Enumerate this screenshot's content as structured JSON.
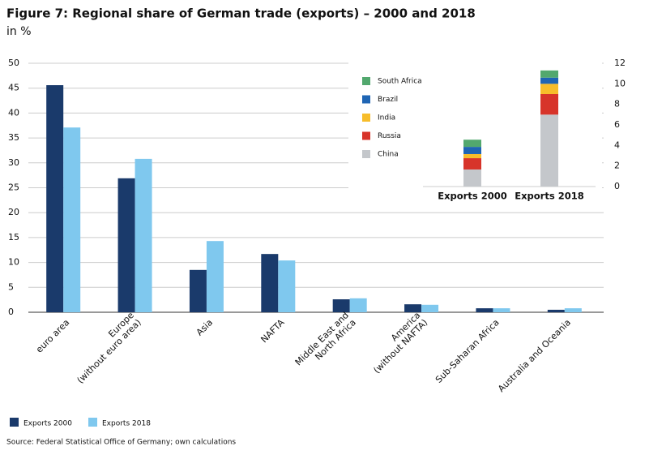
{
  "chart_data": [
    {
      "type": "bar",
      "title": "Figure 7: Regional share of German trade (exports) – 2000 and 2018",
      "subtitle": "in %",
      "note": "Source: Federal Statistical Office of Germany; own calculations",
      "categories": [
        "euro area",
        "Europe\n(without euro area)",
        "Asia",
        "NAFTA",
        "Middle East and\nNorth Africa",
        "America\n(without NAFTA)",
        "Sub-Saharan Africa",
        "Australia and Oceania"
      ],
      "series": [
        {
          "name": "Exports 2000",
          "color": "#1a3a6b",
          "values": [
            45.6,
            26.9,
            8.5,
            11.7,
            2.6,
            1.6,
            0.8,
            0.5
          ]
        },
        {
          "name": "Exports 2018",
          "color": "#7fc8ee",
          "values": [
            37.1,
            30.8,
            14.3,
            10.4,
            2.8,
            1.5,
            0.8,
            0.8
          ]
        }
      ],
      "ylim": [
        0,
        50
      ],
      "yticks": [
        0,
        5,
        10,
        15,
        20,
        25,
        30,
        35,
        40,
        45,
        50
      ],
      "grid": true,
      "legend": "bottom-left"
    },
    {
      "type": "stacked-bar",
      "categories": [
        "Exports 2000",
        "Exports 2018"
      ],
      "series": [
        {
          "name": "China",
          "color": "#c4c7cb",
          "values": [
            1.66,
            7.0
          ]
        },
        {
          "name": "Russia",
          "color": "#d7342a",
          "values": [
            1.1,
            2.0
          ]
        },
        {
          "name": "India",
          "color": "#f7bd2b",
          "values": [
            0.4,
            1.0
          ]
        },
        {
          "name": "Brazil",
          "color": "#1f65b4",
          "values": [
            0.7,
            0.6
          ]
        },
        {
          "name": "South Africa",
          "color": "#52a86e",
          "values": [
            0.7,
            0.7
          ]
        }
      ],
      "ylim": [
        0,
        12
      ],
      "yticks": [
        0,
        2,
        4,
        6,
        8,
        10,
        12
      ],
      "legend": "top-left"
    }
  ]
}
